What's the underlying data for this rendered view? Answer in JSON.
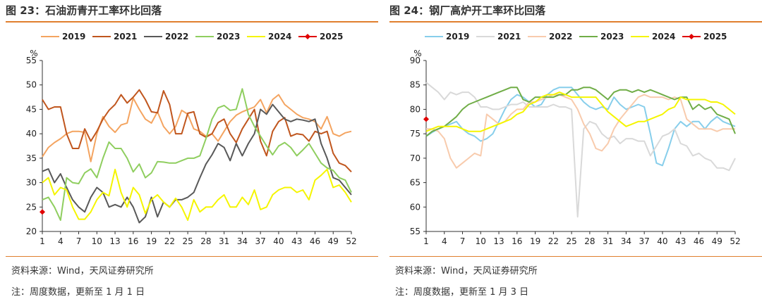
{
  "charts": [
    {
      "title": "图 23：石油沥青开工率环比回落",
      "source": "资料来源：Wind，天风证券研究所",
      "note": "注：周度数据，更新至 1 月 1 日"
    },
    {
      "title": "图 24：钢厂高炉开工率环比回落",
      "source": "资料来源：Wind，天风证券研究所",
      "note": "注：周度数据，更新至 1 月 3 日"
    }
  ],
  "chart_data": [
    {
      "type": "line",
      "title": "图 23：石油沥青开工率环比回落",
      "xlabel": "",
      "ylabel": "%",
      "ylim": [
        20,
        55
      ],
      "yticks": [
        20,
        25,
        30,
        35,
        40,
        45,
        50,
        55
      ],
      "xlim": [
        1,
        52
      ],
      "xticks": [
        1,
        4,
        7,
        10,
        13,
        16,
        19,
        22,
        25,
        28,
        31,
        34,
        37,
        40,
        43,
        46,
        49,
        52
      ],
      "grid": false,
      "legend": "top",
      "series": [
        {
          "name": "2019",
          "color": "#F4A460",
          "values": [
            35.3,
            37.2,
            38.2,
            39,
            40,
            40.5,
            40.5,
            40.3,
            34.3,
            40,
            43.5,
            41.5,
            40.3,
            41.8,
            42.2,
            47.3,
            45,
            43,
            42.2,
            44.5,
            41.5,
            40,
            41.5,
            44.8,
            44,
            41,
            40.5,
            39.5,
            40,
            38.5,
            40.5,
            42.5,
            43.8,
            44.5,
            45,
            45.5,
            47,
            44.3,
            47,
            48,
            46,
            45,
            44,
            43.3,
            43,
            42.5,
            41,
            43.5,
            40,
            39.5,
            40.2,
            40.5
          ]
        },
        {
          "name": "2021",
          "color": "#C0561E",
          "values": [
            47,
            45,
            45.5,
            45.5,
            40,
            37,
            37,
            41,
            38.5,
            40.5,
            43,
            44.8,
            46,
            48,
            46.3,
            47.5,
            49,
            47,
            44.5,
            44.3,
            48.8,
            46,
            40,
            40,
            44.2,
            44.5,
            40,
            39.3,
            40,
            42.3,
            43,
            40,
            38.2,
            41,
            43,
            45,
            38.5,
            35.5,
            40.5,
            42.5,
            43.3,
            39.5,
            40,
            39.8,
            38.5,
            40.5,
            40,
            40.5,
            36,
            34,
            33.5,
            32.2
          ]
        },
        {
          "name": "2022",
          "color": "#595959",
          "values": [
            32.3,
            32.8,
            30,
            31.8,
            29,
            26.5,
            25,
            24,
            27,
            29,
            28,
            25,
            25.5,
            25,
            27,
            25,
            21.8,
            23,
            27,
            23,
            26,
            25,
            26.5,
            26.5,
            27,
            28,
            31,
            33.8,
            35.7,
            38,
            37.2,
            34.5,
            38,
            35.5,
            38,
            40,
            45,
            44,
            46,
            44.5,
            43,
            42.5,
            43,
            42.8,
            42.5,
            43,
            38,
            35,
            31,
            30.5,
            29,
            27.5
          ]
        },
        {
          "name": "2023",
          "color": "#8FCE5F",
          "values": [
            26.5,
            27,
            25,
            22.3,
            31,
            30,
            29.8,
            32,
            32.8,
            31,
            35,
            38.3,
            37,
            37,
            35,
            32.2,
            33.8,
            31,
            32,
            34.3,
            34.2,
            34,
            34,
            34.5,
            35,
            35,
            35.5,
            39,
            43,
            45.3,
            45.8,
            44.8,
            45,
            49.2,
            44,
            41.5,
            39.5,
            37.5,
            35.7,
            37.5,
            38.2,
            37.2,
            35.5,
            36.7,
            38,
            36,
            34,
            33,
            32.5,
            31,
            30.5,
            28
          ]
        },
        {
          "name": "2024",
          "color": "#F5F500",
          "values": [
            30,
            31,
            27.5,
            29,
            28.5,
            25,
            22.5,
            22.5,
            24,
            26.5,
            28,
            27.3,
            32.7,
            28,
            25,
            29,
            27.5,
            23.7,
            26.5,
            27.5,
            26,
            25,
            26.8,
            25,
            22.3,
            26.5,
            24,
            25,
            25,
            26.5,
            27.5,
            25,
            25,
            27,
            25.5,
            28.5,
            24.5,
            25,
            27.5,
            28.5,
            29,
            29,
            28,
            28.5,
            26.5,
            30.5,
            31.5,
            32.7,
            29,
            29.5,
            28,
            26
          ]
        },
        {
          "name": "2025",
          "color": "#E00000",
          "marker": "diamond",
          "values": [
            24
          ]
        }
      ]
    },
    {
      "type": "line",
      "title": "图 24：钢厂高炉开工率环比回落",
      "xlabel": "",
      "ylabel": "%",
      "ylim": [
        55,
        90
      ],
      "yticks": [
        55,
        60,
        65,
        70,
        75,
        80,
        85,
        90
      ],
      "xlim": [
        1,
        52
      ],
      "xticks": [
        1,
        4,
        7,
        10,
        13,
        16,
        19,
        22,
        25,
        28,
        31,
        34,
        37,
        40,
        43,
        46,
        49,
        52
      ],
      "grid": false,
      "legend": "top",
      "series": [
        {
          "name": "2019",
          "color": "#87CEEB",
          "values": [
            74.5,
            75.3,
            76,
            76.5,
            77,
            77.5,
            76,
            75,
            74.5,
            73.5,
            74,
            75,
            77.5,
            80,
            82,
            83,
            82.5,
            81.5,
            80.5,
            81,
            83,
            84,
            84.5,
            84.5,
            84.5,
            83,
            81.5,
            80.5,
            80,
            80.5,
            80,
            82.5,
            81,
            80,
            80.5,
            81,
            80.5,
            75,
            69,
            68.5,
            72,
            76,
            77.5,
            76.5,
            77.5,
            77.5,
            76,
            77.5,
            78.5,
            77.5,
            77,
            76.5
          ]
        },
        {
          "name": "2021",
          "color": "#D9D9D9",
          "values": [
            85.5,
            84.5,
            83.5,
            82,
            83.5,
            83,
            83.5,
            83.5,
            82.5,
            80.5,
            80.5,
            80,
            80,
            80.5,
            81,
            81,
            81.5,
            80.5,
            80.5,
            80.5,
            80.5,
            81,
            80.5,
            80.5,
            80,
            58,
            76,
            77.5,
            77,
            75,
            74,
            74.5,
            73,
            74,
            74,
            73.5,
            73.5,
            70.5,
            72.5,
            74.5,
            75,
            76,
            73,
            72.5,
            70.5,
            71,
            70,
            69.5,
            68,
            68,
            67.5,
            70
          ]
        },
        {
          "name": "2022",
          "color": "#F8CBAD",
          "values": [
            76,
            76,
            75.5,
            74,
            70,
            68,
            69,
            70,
            71,
            70.5,
            79,
            78,
            77,
            77.5,
            79,
            80,
            80,
            81.5,
            81.5,
            82,
            82.5,
            83,
            83,
            82.5,
            82,
            80,
            77,
            75,
            72,
            71.5,
            73,
            76,
            78,
            79.5,
            81,
            82.5,
            83,
            82.5,
            82.5,
            82.5,
            82,
            82.5,
            82,
            78,
            77,
            76,
            76,
            76,
            75.5,
            76,
            76,
            76
          ]
        },
        {
          "name": "2023",
          "color": "#70AD47",
          "values": [
            74.5,
            75.5,
            76,
            76.5,
            77.5,
            78.5,
            80,
            81,
            81.5,
            82,
            82.5,
            83,
            83.5,
            84,
            84.5,
            84.5,
            82,
            81.5,
            82.5,
            82.5,
            82.5,
            82.5,
            83,
            83,
            84,
            84,
            84.5,
            84.5,
            84,
            83,
            82,
            83.5,
            84,
            84,
            83.5,
            84,
            83.5,
            84,
            83.5,
            83,
            82.5,
            82,
            82.5,
            82.5,
            80,
            81,
            80,
            80.5,
            79,
            78.5,
            78,
            75
          ]
        },
        {
          "name": "2024",
          "color": "#F5F500",
          "values": [
            75.5,
            76,
            76.5,
            76.5,
            76.5,
            76.5,
            76,
            75.5,
            75.5,
            75.5,
            76,
            76.5,
            77,
            77.5,
            78,
            79,
            79.5,
            81,
            81.5,
            82.5,
            83,
            83,
            83.5,
            83,
            82.5,
            82.5,
            82.5,
            82.5,
            82.5,
            81,
            79.5,
            78.5,
            77.5,
            76.5,
            77,
            77.5,
            77.5,
            78,
            78.5,
            79,
            80,
            80.5,
            82.5,
            82,
            82,
            82,
            82,
            81.5,
            81.5,
            81,
            80,
            79
          ]
        },
        {
          "name": "2025",
          "color": "#E00000",
          "marker": "diamond",
          "values": [
            78
          ]
        }
      ]
    }
  ]
}
